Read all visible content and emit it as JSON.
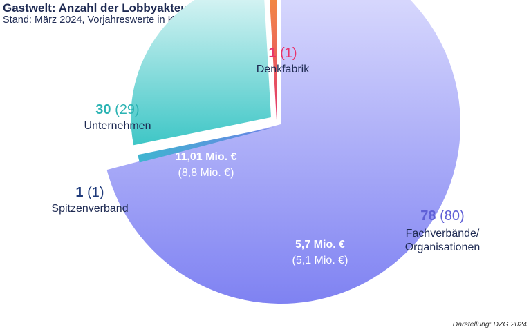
{
  "header": {
    "title": "Gastwelt: Anzahl der Lobbyakteure",
    "subtitle": "Stand: März 2024, Vorjahreswerte in Klammer"
  },
  "chart_data": {
    "type": "pie",
    "slices": [
      {
        "name": "Fachverbände/ Organisationen",
        "name_line1": "Fachverbände/",
        "name_line2": "Organisationen",
        "value": 78,
        "prev_label": "(80)",
        "spend": "5,7 Mio. €",
        "spend_prev": "(5,1 Mio. €)",
        "color": "#9a9cf8",
        "label_color": "#5f5fd6"
      },
      {
        "name": "Spitzenverband",
        "value": 1,
        "prev_label": "(1)",
        "color": "#4aa7d6",
        "label_color": "#1e3a7a"
      },
      {
        "name": "Unternehmen",
        "value": 30,
        "prev_label": "(29)",
        "spend": "11,01 Mio. €",
        "spend_prev": "(8,8 Mio. €)",
        "color": "#6fcfcf",
        "label_color": "#2bb3b3"
      },
      {
        "name": "Denkfabrik",
        "value": 1,
        "prev_label": "(1)",
        "color": "#f5a622",
        "label_color": "#e8336b"
      }
    ]
  },
  "footer": {
    "credit": "Darstellung: DZG 2024"
  }
}
